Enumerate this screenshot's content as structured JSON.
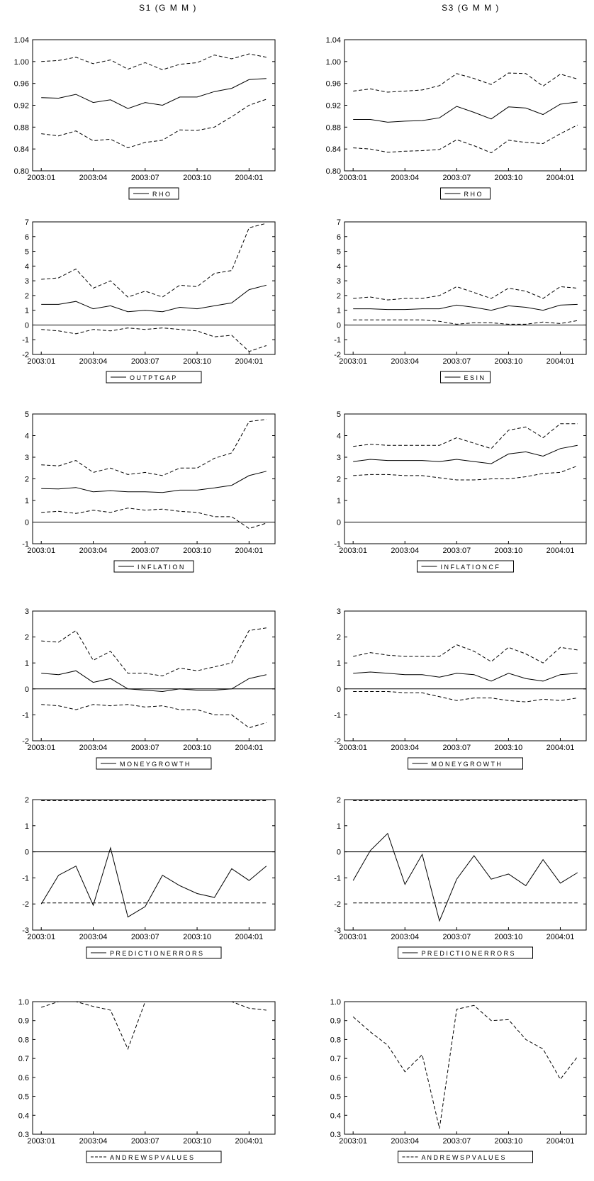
{
  "column_titles": {
    "left": "S1 (G M M )",
    "right": "S3 (G M M )"
  },
  "x_tick_labels": [
    "2003:01",
    "2003:04",
    "2003:07",
    "2003:10",
    "2004:01"
  ],
  "chart_data": [
    {
      "id": "s1-rho",
      "type": "line",
      "legend": "R H O",
      "ylim": [
        0.8,
        1.04
      ],
      "yticks": [
        0.8,
        0.84,
        0.88,
        0.92,
        0.96,
        1.0,
        1.04
      ],
      "ydec": 2,
      "zero_line": false,
      "x": [
        "2003:01",
        "2003:02",
        "2003:03",
        "2003:04",
        "2003:05",
        "2003:06",
        "2003:07",
        "2003:08",
        "2003:09",
        "2003:10",
        "2003:11",
        "2003:12",
        "2004:01",
        "2004:02"
      ],
      "series": [
        {
          "style": "solid",
          "values": [
            0.934,
            0.933,
            0.94,
            0.925,
            0.93,
            0.914,
            0.925,
            0.92,
            0.935,
            0.935,
            0.945,
            0.951,
            0.967,
            0.969
          ]
        },
        {
          "style": "dashed",
          "values": [
            1.0,
            1.002,
            1.008,
            0.996,
            1.003,
            0.986,
            0.998,
            0.985,
            0.995,
            0.998,
            1.012,
            1.005,
            1.014,
            1.008
          ]
        },
        {
          "style": "dashed",
          "values": [
            0.868,
            0.864,
            0.873,
            0.855,
            0.858,
            0.842,
            0.852,
            0.856,
            0.875,
            0.874,
            0.88,
            0.899,
            0.92,
            0.931
          ]
        }
      ]
    },
    {
      "id": "s3-rho",
      "type": "line",
      "legend": "R H O",
      "ylim": [
        0.8,
        1.04
      ],
      "yticks": [
        0.8,
        0.84,
        0.88,
        0.92,
        0.96,
        1.0,
        1.04
      ],
      "ydec": 2,
      "zero_line": false,
      "x": [
        "2003:01",
        "2003:02",
        "2003:03",
        "2003:04",
        "2003:05",
        "2003:06",
        "2003:07",
        "2003:08",
        "2003:09",
        "2003:10",
        "2003:11",
        "2003:12",
        "2004:01",
        "2004:02"
      ],
      "series": [
        {
          "style": "solid",
          "values": [
            0.894,
            0.894,
            0.889,
            0.891,
            0.892,
            0.897,
            0.918,
            0.907,
            0.895,
            0.917,
            0.915,
            0.903,
            0.922,
            0.926
          ]
        },
        {
          "style": "dashed",
          "values": [
            0.946,
            0.95,
            0.944,
            0.946,
            0.948,
            0.956,
            0.978,
            0.969,
            0.958,
            0.979,
            0.978,
            0.955,
            0.977,
            0.968
          ]
        },
        {
          "style": "dashed",
          "values": [
            0.842,
            0.84,
            0.834,
            0.836,
            0.837,
            0.839,
            0.857,
            0.846,
            0.833,
            0.856,
            0.852,
            0.85,
            0.868,
            0.884
          ]
        }
      ]
    },
    {
      "id": "s1-output-gap",
      "type": "line",
      "legend": "O U T P T G A P",
      "ylim": [
        -2,
        7
      ],
      "yticks": [
        -2,
        -1,
        0,
        1,
        2,
        3,
        4,
        5,
        6,
        7
      ],
      "ydec": 0,
      "zero_line": true,
      "x": [
        "2003:01",
        "2003:02",
        "2003:03",
        "2003:04",
        "2003:05",
        "2003:06",
        "2003:07",
        "2003:08",
        "2003:09",
        "2003:10",
        "2003:11",
        "2003:12",
        "2004:01",
        "2004:02"
      ],
      "series": [
        {
          "style": "solid",
          "values": [
            1.4,
            1.4,
            1.6,
            1.1,
            1.3,
            0.9,
            1.0,
            0.9,
            1.2,
            1.1,
            1.3,
            1.5,
            2.4,
            2.7
          ]
        },
        {
          "style": "dashed",
          "values": [
            3.1,
            3.2,
            3.8,
            2.5,
            3.0,
            1.9,
            2.3,
            1.9,
            2.7,
            2.6,
            3.5,
            3.7,
            6.6,
            6.9
          ]
        },
        {
          "style": "dashed",
          "values": [
            -0.3,
            -0.4,
            -0.6,
            -0.3,
            -0.4,
            -0.2,
            -0.3,
            -0.2,
            -0.3,
            -0.4,
            -0.8,
            -0.7,
            -1.8,
            -1.4
          ]
        }
      ]
    },
    {
      "id": "s3-esin",
      "type": "line",
      "legend": "E S I N",
      "ylim": [
        -2,
        7
      ],
      "yticks": [
        -2,
        -1,
        0,
        1,
        2,
        3,
        4,
        5,
        6,
        7
      ],
      "ydec": 0,
      "zero_line": true,
      "x": [
        "2003:01",
        "2003:02",
        "2003:03",
        "2003:04",
        "2003:05",
        "2003:06",
        "2003:07",
        "2003:08",
        "2003:09",
        "2003:10",
        "2003:11",
        "2003:12",
        "2004:01",
        "2004:02"
      ],
      "series": [
        {
          "style": "solid",
          "values": [
            1.1,
            1.1,
            1.05,
            1.05,
            1.1,
            1.1,
            1.35,
            1.2,
            1.0,
            1.3,
            1.2,
            1.0,
            1.35,
            1.4
          ]
        },
        {
          "style": "dashed",
          "values": [
            1.8,
            1.9,
            1.7,
            1.8,
            1.8,
            2.0,
            2.6,
            2.2,
            1.8,
            2.5,
            2.3,
            1.8,
            2.6,
            2.5
          ]
        },
        {
          "style": "dashed",
          "values": [
            0.35,
            0.35,
            0.35,
            0.35,
            0.35,
            0.25,
            0.05,
            0.15,
            0.15,
            0.05,
            0.05,
            0.2,
            0.1,
            0.3
          ]
        }
      ]
    },
    {
      "id": "s1-inflation",
      "type": "line",
      "legend": "I N F L A T I O N",
      "ylim": [
        -1,
        5
      ],
      "yticks": [
        -1,
        0,
        1,
        2,
        3,
        4,
        5
      ],
      "ydec": 0,
      "zero_line": true,
      "x": [
        "2003:01",
        "2003:02",
        "2003:03",
        "2003:04",
        "2003:05",
        "2003:06",
        "2003:07",
        "2003:08",
        "2003:09",
        "2003:10",
        "2003:11",
        "2003:12",
        "2004:01",
        "2004:02"
      ],
      "series": [
        {
          "style": "solid",
          "values": [
            1.55,
            1.53,
            1.6,
            1.4,
            1.45,
            1.4,
            1.4,
            1.37,
            1.48,
            1.48,
            1.58,
            1.7,
            2.15,
            2.35
          ]
        },
        {
          "style": "dashed",
          "values": [
            2.65,
            2.6,
            2.85,
            2.3,
            2.5,
            2.2,
            2.3,
            2.15,
            2.5,
            2.5,
            2.95,
            3.2,
            4.65,
            4.75
          ]
        },
        {
          "style": "dashed",
          "values": [
            0.45,
            0.5,
            0.4,
            0.55,
            0.45,
            0.65,
            0.55,
            0.6,
            0.5,
            0.45,
            0.25,
            0.25,
            -0.3,
            -0.05
          ]
        }
      ]
    },
    {
      "id": "s3-inflation-cf",
      "type": "line",
      "legend": "I N F L A T I O N C F",
      "ylim": [
        -1,
        5
      ],
      "yticks": [
        -1,
        0,
        1,
        2,
        3,
        4,
        5
      ],
      "ydec": 0,
      "zero_line": true,
      "x": [
        "2003:01",
        "2003:02",
        "2003:03",
        "2003:04",
        "2003:05",
        "2003:06",
        "2003:07",
        "2003:08",
        "2003:09",
        "2003:10",
        "2003:11",
        "2003:12",
        "2004:01",
        "2004:02"
      ],
      "series": [
        {
          "style": "solid",
          "values": [
            2.8,
            2.9,
            2.85,
            2.85,
            2.85,
            2.8,
            2.9,
            2.8,
            2.7,
            3.15,
            3.25,
            3.05,
            3.4,
            3.55
          ]
        },
        {
          "style": "dashed",
          "values": [
            3.5,
            3.6,
            3.55,
            3.55,
            3.55,
            3.55,
            3.9,
            3.65,
            3.4,
            4.25,
            4.4,
            3.9,
            4.55,
            4.55
          ]
        },
        {
          "style": "dashed",
          "values": [
            2.15,
            2.2,
            2.2,
            2.15,
            2.15,
            2.05,
            1.95,
            1.95,
            2.0,
            2.0,
            2.1,
            2.25,
            2.3,
            2.6
          ]
        }
      ]
    },
    {
      "id": "s1-money-growth",
      "type": "line",
      "legend": "M O N E Y G R O W T H",
      "ylim": [
        -2,
        3
      ],
      "yticks": [
        -2,
        -1,
        0,
        1,
        2,
        3
      ],
      "ydec": 0,
      "zero_line": true,
      "x": [
        "2003:01",
        "2003:02",
        "2003:03",
        "2003:04",
        "2003:05",
        "2003:06",
        "2003:07",
        "2003:08",
        "2003:09",
        "2003:10",
        "2003:11",
        "2003:12",
        "2004:01",
        "2004:02"
      ],
      "series": [
        {
          "style": "solid",
          "values": [
            0.6,
            0.55,
            0.7,
            0.25,
            0.4,
            0.0,
            -0.05,
            -0.1,
            0.0,
            -0.05,
            -0.05,
            0.0,
            0.4,
            0.55
          ]
        },
        {
          "style": "dashed",
          "values": [
            1.85,
            1.8,
            2.25,
            1.1,
            1.45,
            0.6,
            0.6,
            0.5,
            0.8,
            0.7,
            0.85,
            1.0,
            2.25,
            2.35
          ]
        },
        {
          "style": "dashed",
          "values": [
            -0.6,
            -0.65,
            -0.8,
            -0.6,
            -0.65,
            -0.6,
            -0.7,
            -0.65,
            -0.8,
            -0.8,
            -1.0,
            -1.0,
            -1.5,
            -1.3
          ]
        }
      ]
    },
    {
      "id": "s3-money-growth",
      "type": "line",
      "legend": "M O N E Y G R O W T H",
      "ylim": [
        -2,
        3
      ],
      "yticks": [
        -2,
        -1,
        0,
        1,
        2,
        3
      ],
      "ydec": 0,
      "zero_line": true,
      "x": [
        "2003:01",
        "2003:02",
        "2003:03",
        "2003:04",
        "2003:05",
        "2003:06",
        "2003:07",
        "2003:08",
        "2003:09",
        "2003:10",
        "2003:11",
        "2003:12",
        "2004:01",
        "2004:02"
      ],
      "series": [
        {
          "style": "solid",
          "values": [
            0.6,
            0.65,
            0.6,
            0.55,
            0.55,
            0.45,
            0.6,
            0.55,
            0.3,
            0.6,
            0.4,
            0.3,
            0.55,
            0.6
          ]
        },
        {
          "style": "dashed",
          "values": [
            1.25,
            1.4,
            1.3,
            1.25,
            1.25,
            1.25,
            1.7,
            1.45,
            1.05,
            1.6,
            1.35,
            1.0,
            1.6,
            1.5
          ]
        },
        {
          "style": "dashed",
          "values": [
            -0.1,
            -0.1,
            -0.1,
            -0.15,
            -0.15,
            -0.3,
            -0.45,
            -0.35,
            -0.35,
            -0.45,
            -0.5,
            -0.4,
            -0.45,
            -0.35
          ]
        }
      ]
    },
    {
      "id": "s1-prediction-errors",
      "type": "line",
      "legend": "P R E D I C T I O N E R R O R S",
      "ylim": [
        -3,
        2
      ],
      "yticks": [
        -3,
        -2,
        -1,
        0,
        1,
        2
      ],
      "ydec": 0,
      "zero_line": true,
      "x": [
        "2003:01",
        "2003:02",
        "2003:03",
        "2003:04",
        "2003:05",
        "2003:06",
        "2003:07",
        "2003:08",
        "2003:09",
        "2003:10",
        "2003:11",
        "2003:12",
        "2004:01",
        "2004:02"
      ],
      "series": [
        {
          "style": "solid",
          "values": [
            -2.0,
            -0.9,
            -0.55,
            -2.05,
            0.15,
            -2.5,
            -2.1,
            -0.9,
            -1.3,
            -1.6,
            -1.75,
            -0.65,
            -1.1,
            -0.55
          ]
        },
        {
          "style": "dashed",
          "values": [
            1.96,
            1.96,
            1.96,
            1.96,
            1.96,
            1.96,
            1.96,
            1.96,
            1.96,
            1.96,
            1.96,
            1.96,
            1.96,
            1.96
          ]
        },
        {
          "style": "dashed",
          "values": [
            -1.96,
            -1.96,
            -1.96,
            -1.96,
            -1.96,
            -1.96,
            -1.96,
            -1.96,
            -1.96,
            -1.96,
            -1.96,
            -1.96,
            -1.96,
            -1.96
          ]
        }
      ]
    },
    {
      "id": "s3-prediction-errors",
      "type": "line",
      "legend": "P R E D I C T I O N E R R O R S",
      "ylim": [
        -3,
        2
      ],
      "yticks": [
        -3,
        -2,
        -1,
        0,
        1,
        2
      ],
      "ydec": 0,
      "zero_line": true,
      "x": [
        "2003:01",
        "2003:02",
        "2003:03",
        "2003:04",
        "2003:05",
        "2003:06",
        "2003:07",
        "2003:08",
        "2003:09",
        "2003:10",
        "2003:11",
        "2003:12",
        "2004:01",
        "2004:02"
      ],
      "series": [
        {
          "style": "solid",
          "values": [
            -1.1,
            0.05,
            0.7,
            -1.25,
            -0.1,
            -2.65,
            -1.05,
            -0.15,
            -1.05,
            -0.85,
            -1.3,
            -0.3,
            -1.2,
            -0.8
          ]
        },
        {
          "style": "dashed",
          "values": [
            1.96,
            1.96,
            1.96,
            1.96,
            1.96,
            1.96,
            1.96,
            1.96,
            1.96,
            1.96,
            1.96,
            1.96,
            1.96,
            1.96
          ]
        },
        {
          "style": "dashed",
          "values": [
            -1.96,
            -1.96,
            -1.96,
            -1.96,
            -1.96,
            -1.96,
            -1.96,
            -1.96,
            -1.96,
            -1.96,
            -1.96,
            -1.96,
            -1.96,
            -1.96
          ]
        }
      ]
    },
    {
      "id": "s1-andrews-pvalues",
      "type": "line",
      "legend": "A N D R E W S P V A L U E S",
      "ylim": [
        0.3,
        1.0
      ],
      "yticks": [
        0.3,
        0.4,
        0.5,
        0.6,
        0.7,
        0.8,
        0.9,
        1.0
      ],
      "ydec": 1,
      "zero_line": false,
      "x": [
        "2003:01",
        "2003:02",
        "2003:03",
        "2003:04",
        "2003:05",
        "2003:06",
        "2003:07",
        "2003:08",
        "2003:09",
        "2003:10",
        "2003:11",
        "2003:12",
        "2004:01",
        "2004:02"
      ],
      "series": [
        {
          "style": "dashed",
          "values": [
            0.97,
            1.0,
            1.0,
            0.975,
            0.955,
            0.75,
            1.0,
            1.0,
            1.0,
            1.0,
            1.0,
            1.0,
            0.965,
            0.955
          ]
        }
      ]
    },
    {
      "id": "s3-andrews-pvalues",
      "type": "line",
      "legend": "A N D R E W S P V A L U E S",
      "ylim": [
        0.3,
        1.0
      ],
      "yticks": [
        0.3,
        0.4,
        0.5,
        0.6,
        0.7,
        0.8,
        0.9,
        1.0
      ],
      "ydec": 1,
      "zero_line": false,
      "x": [
        "2003:01",
        "2003:02",
        "2003:03",
        "2003:04",
        "2003:05",
        "2003:06",
        "2003:07",
        "2003:08",
        "2003:09",
        "2003:10",
        "2003:11",
        "2003:12",
        "2004:01",
        "2004:02"
      ],
      "series": [
        {
          "style": "dashed",
          "values": [
            0.92,
            0.84,
            0.77,
            0.63,
            0.72,
            0.33,
            0.96,
            0.98,
            0.9,
            0.905,
            0.8,
            0.75,
            0.59,
            0.71
          ]
        }
      ]
    }
  ]
}
